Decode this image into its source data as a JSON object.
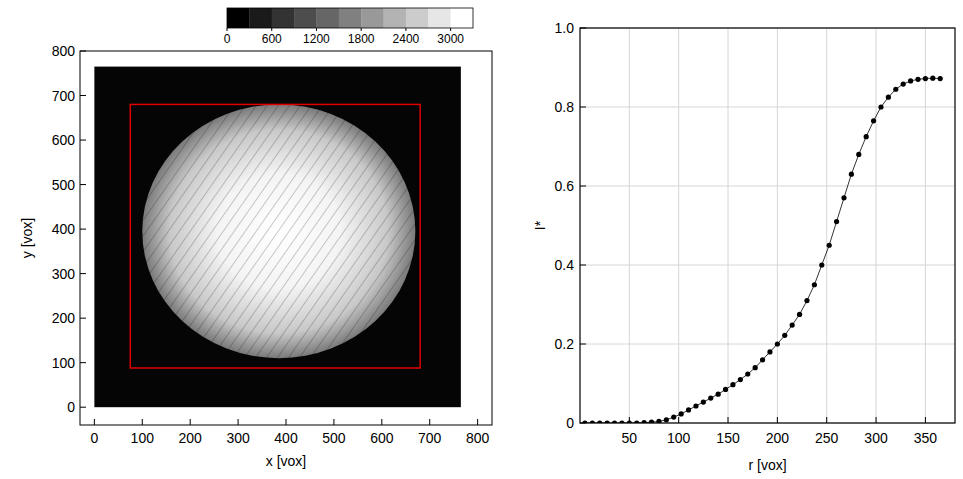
{
  "chart_data": [
    {
      "type": "image",
      "xlabel": "x [vox]",
      "ylabel": "y [vox]",
      "xlim": [
        -30,
        830
      ],
      "ylim": [
        -40,
        800
      ],
      "xticks": [
        0,
        100,
        200,
        300,
        400,
        500,
        600,
        700,
        800
      ],
      "yticks": [
        0,
        100,
        200,
        300,
        400,
        500,
        600,
        700,
        800
      ],
      "image": {
        "extent": [
          0,
          765
        ],
        "disc": {
          "center": [
            385,
            395
          ],
          "radius": 285
        }
      },
      "rectangle": {
        "x": [
          75,
          680
        ],
        "y": [
          88,
          680
        ],
        "color": "#e00000"
      },
      "colorbar": {
        "range": [
          0,
          3300
        ],
        "ticks": [
          0,
          600,
          1200,
          1800,
          2400,
          3000
        ],
        "levels": 11
      }
    },
    {
      "type": "line",
      "xlabel": "r [vox]",
      "ylabel": "I*",
      "xlim": [
        0,
        380
      ],
      "ylim": [
        0,
        1
      ],
      "xticks": [
        50,
        100,
        150,
        200,
        250,
        300,
        350
      ],
      "yticks": [
        0,
        0.2,
        0.4,
        0.6,
        0.8,
        {
          "value": 1,
          "label": "1.0"
        }
      ],
      "grid": true,
      "color": "#000000",
      "marker": "circle",
      "x": [
        5,
        12.5,
        20,
        27.5,
        35,
        42.5,
        50,
        57.5,
        65,
        72.5,
        80,
        87.5,
        95,
        102.5,
        110,
        117.5,
        125,
        132.5,
        140,
        147.5,
        155,
        162.5,
        170,
        177.5,
        185,
        192.5,
        200,
        207.5,
        215,
        222.5,
        230,
        237.5,
        245,
        252.5,
        260,
        267.5,
        275,
        282.5,
        290,
        297.5,
        305,
        312.5,
        320,
        327.5,
        335,
        342.5,
        350,
        357.5,
        365
      ],
      "values": [
        0,
        0,
        0,
        0,
        0,
        0,
        0,
        0,
        0.001,
        0.002,
        0.004,
        0.008,
        0.015,
        0.023,
        0.033,
        0.043,
        0.053,
        0.063,
        0.073,
        0.085,
        0.097,
        0.11,
        0.124,
        0.14,
        0.16,
        0.18,
        0.2,
        0.222,
        0.248,
        0.275,
        0.31,
        0.35,
        0.4,
        0.45,
        0.51,
        0.57,
        0.63,
        0.68,
        0.725,
        0.765,
        0.8,
        0.825,
        0.845,
        0.858,
        0.866,
        0.87,
        0.872,
        0.873,
        0.872
      ]
    }
  ]
}
